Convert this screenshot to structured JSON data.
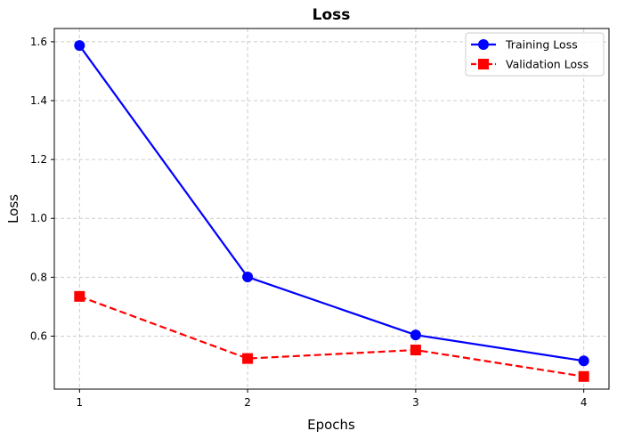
{
  "chart_data": {
    "type": "line",
    "title": "Loss",
    "xlabel": "Epochs",
    "ylabel": "Loss",
    "x": [
      1,
      2,
      3,
      4
    ],
    "xticks": [
      "1",
      "2",
      "3",
      "4"
    ],
    "yticks": [
      "0.6",
      "0.8",
      "1.0",
      "1.2",
      "1.4",
      "1.6"
    ],
    "xlim": [
      0.85,
      4.15
    ],
    "ylim": [
      0.42,
      1.645
    ],
    "grid": true,
    "grid_style": "dashed",
    "legend_position": "top-right",
    "series": [
      {
        "name": "Training Loss",
        "values": [
          1.587,
          0.801,
          0.604,
          0.516
        ],
        "color": "#0000ff",
        "line_style": "solid",
        "marker": "circle"
      },
      {
        "name": "Validation Loss",
        "values": [
          0.735,
          0.524,
          0.553,
          0.463
        ],
        "color": "#ff0000",
        "line_style": "dashed",
        "marker": "square"
      }
    ]
  }
}
